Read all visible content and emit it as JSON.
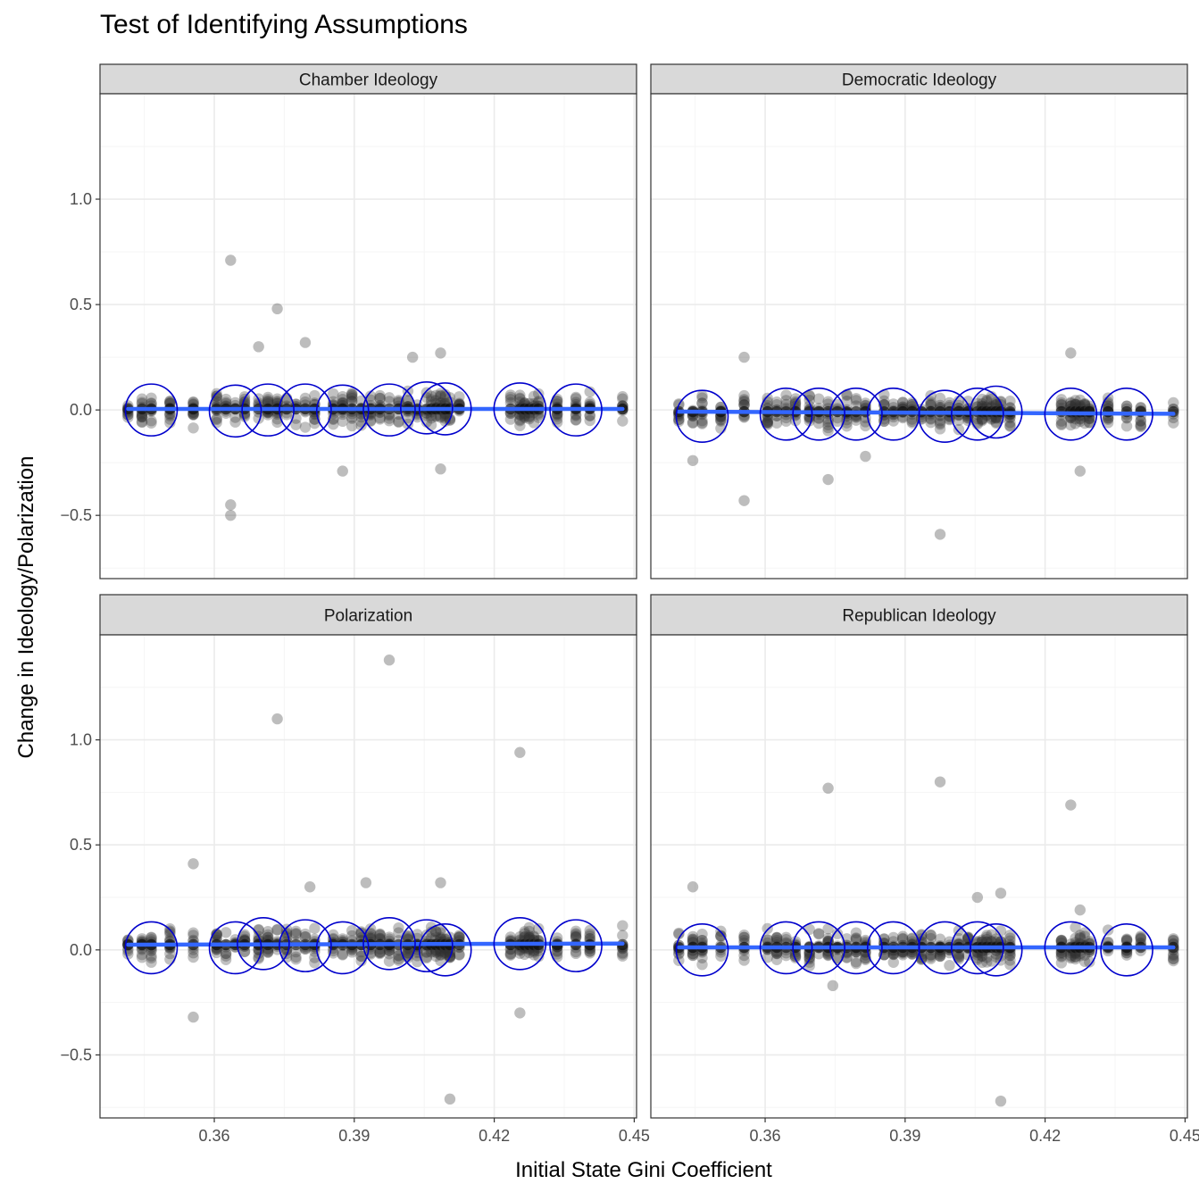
{
  "chart_data": {
    "type": "scatter",
    "title": "Test of Identifying Assumptions",
    "xlabel": "Initial State Gini Coefficient",
    "ylabel": "Change in Ideology/Polarization",
    "xlim": [
      0.3355,
      0.4505
    ],
    "ylim": [
      -0.8,
      1.5
    ],
    "x_ticks": [
      0.36,
      0.39,
      0.42,
      0.45
    ],
    "x_tick_labels": [
      "0.36",
      "0.39",
      "0.42",
      "0.45"
    ],
    "y_ticks": [
      -0.5,
      0.0,
      0.5,
      1.0
    ],
    "y_tick_labels": [
      "−0.5",
      "0.0",
      "0.5",
      "1.0"
    ],
    "grid": true,
    "facets": [
      "Chamber Ideology",
      "Democratic Ideology",
      "Polarization",
      "Republican Ideology"
    ],
    "state_gini_values": [
      0.3415,
      0.3445,
      0.3465,
      0.3505,
      0.3555,
      0.3605,
      0.3625,
      0.3645,
      0.3665,
      0.3695,
      0.3715,
      0.3735,
      0.3755,
      0.3775,
      0.3795,
      0.3815,
      0.3855,
      0.3875,
      0.3895,
      0.3915,
      0.3935,
      0.3955,
      0.3975,
      0.3995,
      0.4015,
      0.4035,
      0.4055,
      0.4065,
      0.4075,
      0.4085,
      0.4095,
      0.4105,
      0.4125,
      0.4235,
      0.4255,
      0.4265,
      0.4275,
      0.4285,
      0.4295,
      0.4335,
      0.4375,
      0.4405,
      0.4475
    ],
    "series": [
      {
        "facet": "Chamber Ideology",
        "fit_line": {
          "x": [
            0.3415,
            0.4475
          ],
          "y": [
            0.005,
            0.005
          ]
        },
        "circle_centers": [
          [
            0.3465,
            0.0
          ],
          [
            0.3645,
            -0.005
          ],
          [
            0.3715,
            0.0
          ],
          [
            0.3795,
            0.0
          ],
          [
            0.3875,
            -0.005
          ],
          [
            0.3975,
            0.0
          ],
          [
            0.4055,
            0.01
          ],
          [
            0.4095,
            0.005
          ],
          [
            0.4255,
            0.005
          ],
          [
            0.4375,
            0.0
          ]
        ],
        "outliers": [
          [
            0.3635,
            0.71
          ],
          [
            0.3735,
            0.48
          ],
          [
            0.3795,
            0.32
          ],
          [
            0.3695,
            0.3
          ],
          [
            0.3635,
            -0.45
          ],
          [
            0.3635,
            -0.5
          ],
          [
            0.3875,
            -0.29
          ],
          [
            0.4085,
            -0.28
          ],
          [
            0.4025,
            0.25
          ],
          [
            0.4085,
            0.27
          ]
        ]
      },
      {
        "facet": "Democratic Ideology",
        "fit_line": {
          "x": [
            0.3415,
            0.4475
          ],
          "y": [
            -0.008,
            -0.018
          ]
        },
        "circle_centers": [
          [
            0.3465,
            -0.03
          ],
          [
            0.3645,
            -0.02
          ],
          [
            0.3715,
            -0.02
          ],
          [
            0.3795,
            -0.02
          ],
          [
            0.3875,
            -0.02
          ],
          [
            0.3985,
            -0.03
          ],
          [
            0.4055,
            -0.02
          ],
          [
            0.4095,
            -0.01
          ],
          [
            0.4255,
            -0.02
          ],
          [
            0.4375,
            -0.02
          ]
        ],
        "outliers": [
          [
            0.3555,
            0.25
          ],
          [
            0.3555,
            -0.43
          ],
          [
            0.3975,
            -0.59
          ],
          [
            0.3735,
            -0.33
          ],
          [
            0.4255,
            0.27
          ],
          [
            0.3445,
            -0.24
          ],
          [
            0.4275,
            -0.29
          ],
          [
            0.3815,
            -0.22
          ]
        ]
      },
      {
        "facet": "Polarization",
        "fit_line": {
          "x": [
            0.3415,
            0.4475
          ],
          "y": [
            0.025,
            0.03
          ]
        },
        "circle_centers": [
          [
            0.3465,
            0.01
          ],
          [
            0.3645,
            0.01
          ],
          [
            0.3705,
            0.03
          ],
          [
            0.3795,
            0.02
          ],
          [
            0.3875,
            0.01
          ],
          [
            0.3975,
            0.03
          ],
          [
            0.4055,
            0.02
          ],
          [
            0.4095,
            0.0
          ],
          [
            0.4255,
            0.03
          ],
          [
            0.4375,
            0.02
          ]
        ],
        "outliers": [
          [
            0.3975,
            1.38
          ],
          [
            0.3735,
            1.1
          ],
          [
            0.4255,
            0.94
          ],
          [
            0.3555,
            0.41
          ],
          [
            0.3555,
            -0.32
          ],
          [
            0.4105,
            -0.71
          ],
          [
            0.4255,
            -0.3
          ],
          [
            0.3805,
            0.3
          ],
          [
            0.3925,
            0.32
          ],
          [
            0.4085,
            0.32
          ]
        ]
      },
      {
        "facet": "Republican Ideology",
        "fit_line": {
          "x": [
            0.3415,
            0.4475
          ],
          "y": [
            0.012,
            0.012
          ]
        },
        "circle_centers": [
          [
            0.3465,
            0.0
          ],
          [
            0.3645,
            0.01
          ],
          [
            0.3715,
            0.01
          ],
          [
            0.3795,
            0.01
          ],
          [
            0.3875,
            0.01
          ],
          [
            0.3985,
            0.01
          ],
          [
            0.4055,
            0.01
          ],
          [
            0.4095,
            0.0
          ],
          [
            0.4255,
            0.01
          ],
          [
            0.4375,
            0.0
          ]
        ],
        "outliers": [
          [
            0.3975,
            0.8
          ],
          [
            0.3735,
            0.77
          ],
          [
            0.4255,
            0.69
          ],
          [
            0.4105,
            -0.72
          ],
          [
            0.3445,
            0.3
          ],
          [
            0.4105,
            0.27
          ],
          [
            0.4055,
            0.25
          ],
          [
            0.3745,
            -0.17
          ],
          [
            0.4275,
            0.19
          ]
        ]
      }
    ]
  },
  "colors": {
    "points": "#333333",
    "fit_line": "#3366ff",
    "circles": "#0000cc",
    "strip_fill": "#d9d9d9",
    "grid_major": "#ebebeb",
    "grid_minor": "#f5f5f5",
    "panel_border": "#333333"
  }
}
